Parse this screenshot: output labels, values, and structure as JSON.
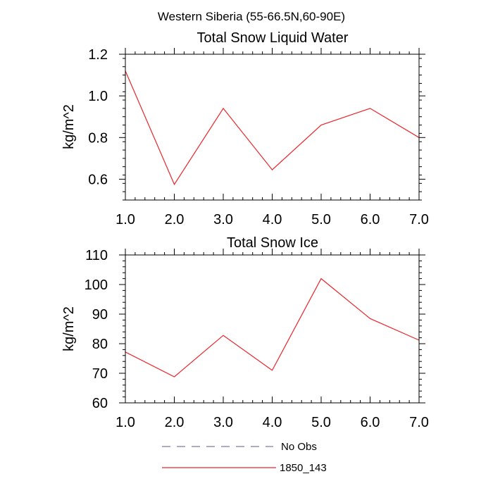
{
  "figure": {
    "title": "Western Siberia (55-66.5N,60-90E)"
  },
  "chart_data": [
    {
      "type": "line",
      "title": "Total Snow Liquid Water",
      "xlabel": "",
      "ylabel": "kg/m^2",
      "xlim": [
        1.0,
        7.0
      ],
      "ylim": [
        0.5,
        1.2
      ],
      "x_ticks": [
        "1.0",
        "2.0",
        "3.0",
        "4.0",
        "5.0",
        "6.0",
        "7.0"
      ],
      "y_ticks": [
        "0.6",
        "0.8",
        "1.0",
        "1.2"
      ],
      "x": [
        1,
        2,
        3,
        4,
        5,
        6,
        7
      ],
      "series": [
        {
          "name": "1850_143",
          "color": "#e8262b",
          "values": [
            1.12,
            0.575,
            0.94,
            0.645,
            0.86,
            0.94,
            0.8
          ]
        }
      ]
    },
    {
      "type": "line",
      "title": "Total Snow Ice",
      "xlabel": "",
      "ylabel": "kg/m^2",
      "xlim": [
        1.0,
        7.0
      ],
      "ylim": [
        60,
        110
      ],
      "x_ticks": [
        "1.0",
        "2.0",
        "3.0",
        "4.0",
        "5.0",
        "6.0",
        "7.0"
      ],
      "y_ticks": [
        "60",
        "70",
        "80",
        "90",
        "100",
        "110"
      ],
      "x": [
        1,
        2,
        3,
        4,
        5,
        6,
        7
      ],
      "series": [
        {
          "name": "1850_143",
          "color": "#e8262b",
          "values": [
            77.2,
            68.8,
            82.8,
            71.0,
            102.0,
            88.5,
            81.2
          ]
        }
      ]
    }
  ],
  "legend": {
    "items": [
      {
        "label": "No Obs",
        "style": "dashed",
        "color": "#7a7aa8"
      },
      {
        "label": "1850_143",
        "style": "solid",
        "color": "#e8262b"
      }
    ]
  }
}
